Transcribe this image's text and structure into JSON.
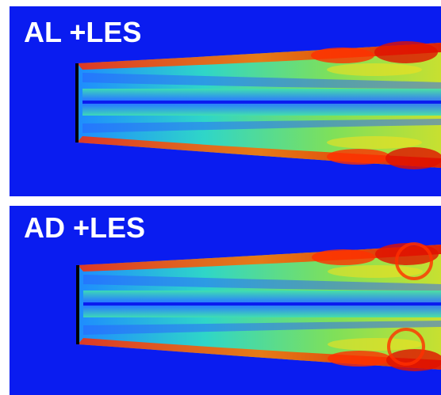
{
  "panels": [
    {
      "label": "AL +LES"
    },
    {
      "label": "AD +LES"
    }
  ]
}
